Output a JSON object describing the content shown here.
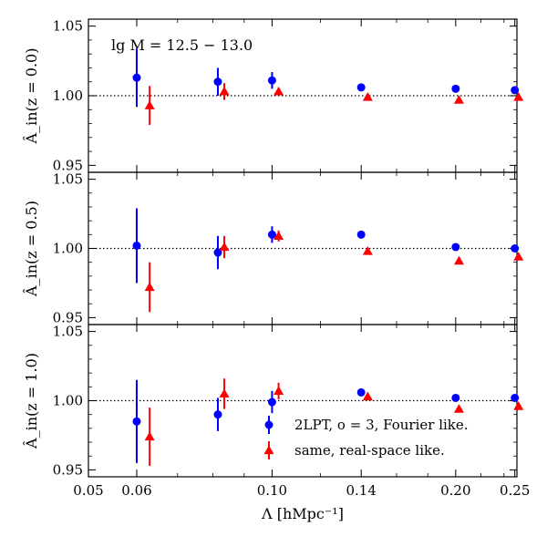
{
  "chart_data": {
    "type": "scatter",
    "xlabel": "Λ [hMpc⁻¹]",
    "x_ticks": [
      0.05,
      0.06,
      0.1,
      0.14,
      0.2,
      0.25
    ],
    "x_tick_labels": [
      "0.05",
      "0.06",
      "0.10",
      "0.14",
      "0.20",
      "0.25"
    ],
    "xlim": [
      0.05,
      0.252
    ],
    "x_scale": "log",
    "annotation": "lg M = 12.5 − 13.0",
    "legend": [
      {
        "label": "2LPT, o = 3, Fourier like.",
        "marker": "circle",
        "color": "#0000ff"
      },
      {
        "label": "same, real-space like.",
        "marker": "triangle",
        "color": "#ff0000"
      }
    ],
    "colors": {
      "fourier": "#0000ff",
      "real": "#ff0000",
      "reference_line": "#000000"
    },
    "panels": [
      {
        "ylabel": "Â_in(z = 0.0)",
        "ylim": [
          0.945,
          1.055
        ],
        "y_ticks": [
          0.95,
          1.0,
          1.05
        ],
        "y_tick_labels": [
          "0.95",
          "1.00",
          "1.05"
        ],
        "reference": 1.0,
        "series": [
          {
            "name": "2LPT, o = 3, Fourier like.",
            "marker": "circle",
            "x": [
              0.06,
              0.0815,
              0.1,
              0.14,
              0.2,
              0.25
            ],
            "y": [
              1.013,
              1.01,
              1.011,
              1.006,
              1.005,
              1.004
            ],
            "err": [
              0.021,
              0.01,
              0.006,
              0.0,
              0.0,
              0.0
            ]
          },
          {
            "name": "same, real-space like.",
            "marker": "triangle",
            "x": [
              0.063,
              0.0835,
              0.1025,
              0.1435,
              0.2025,
              0.2535
            ],
            "y": [
              0.993,
              1.003,
              1.003,
              0.999,
              0.997,
              0.999
            ],
            "err": [
              0.014,
              0.006,
              0.0,
              0.0,
              0.0,
              0.0
            ]
          }
        ]
      },
      {
        "ylabel": "Â_in(z = 0.5)",
        "ylim": [
          0.945,
          1.055
        ],
        "y_ticks": [
          0.95,
          1.0,
          1.05
        ],
        "y_tick_labels": [
          "0.95",
          "1.00",
          "1.05"
        ],
        "reference": 1.0,
        "series": [
          {
            "name": "2LPT, o = 3, Fourier like.",
            "marker": "circle",
            "x": [
              0.06,
              0.0815,
              0.1,
              0.14,
              0.2,
              0.25
            ],
            "y": [
              1.002,
              0.997,
              1.01,
              1.01,
              1.001,
              1.0
            ],
            "err": [
              0.027,
              0.012,
              0.006,
              0.0,
              0.0,
              0.0
            ]
          },
          {
            "name": "same, real-space like.",
            "marker": "triangle",
            "x": [
              0.063,
              0.0835,
              0.1025,
              0.1435,
              0.2025,
              0.2535
            ],
            "y": [
              0.972,
              1.001,
              1.009,
              0.998,
              0.991,
              0.994
            ],
            "err": [
              0.018,
              0.008,
              0.004,
              0.0,
              0.0,
              0.0
            ]
          }
        ]
      },
      {
        "ylabel": "Â_in(z = 1.0)",
        "ylim": [
          0.945,
          1.055
        ],
        "y_ticks": [
          0.95,
          1.0,
          1.05
        ],
        "y_tick_labels": [
          "0.95",
          "1.00",
          "1.05"
        ],
        "reference": 1.0,
        "series": [
          {
            "name": "2LPT, o = 3, Fourier like.",
            "marker": "circle",
            "x": [
              0.06,
              0.0815,
              0.1,
              0.14,
              0.2,
              0.25
            ],
            "y": [
              0.985,
              0.99,
              0.999,
              1.006,
              1.002,
              1.002
            ],
            "err": [
              0.03,
              0.012,
              0.008,
              0.0,
              0.0,
              0.0
            ]
          },
          {
            "name": "same, real-space like.",
            "marker": "triangle",
            "x": [
              0.063,
              0.0835,
              0.1025,
              0.1435,
              0.2025,
              0.2535
            ],
            "y": [
              0.974,
              1.005,
              1.007,
              1.003,
              0.994,
              0.996
            ],
            "err": [
              0.021,
              0.011,
              0.006,
              0.0,
              0.0,
              0.0
            ]
          }
        ]
      }
    ]
  }
}
